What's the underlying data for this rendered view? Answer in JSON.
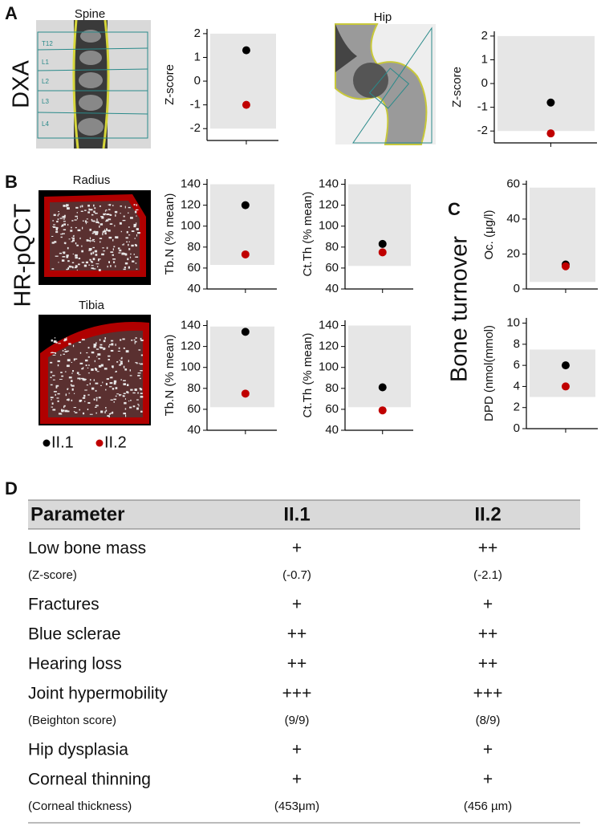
{
  "panel_labels": [
    "A",
    "B",
    "C",
    "D"
  ],
  "row_labels": [
    "DXA",
    "HR-pQCT",
    "Bone turnover"
  ],
  "image_titles": [
    "Spine",
    "Hip",
    "Radius",
    "Tibia"
  ],
  "spine_levels": [
    "T12",
    "L1",
    "L2",
    "L3",
    "L4"
  ],
  "chart_data": [
    {
      "type": "dot",
      "y_label": "Z-score",
      "categories": [
        null
      ],
      "series": [
        {
          "name": "II.1",
          "color": "#000000",
          "values": [
            1.3
          ]
        },
        {
          "name": "II.2",
          "color": "#c00000",
          "values": [
            -1.0
          ]
        }
      ],
      "reference_range": [
        -2,
        2
      ],
      "reference_color": "#e6e6e6",
      "ylim": [
        -2.5,
        2.2
      ],
      "yticks": [
        -2,
        -1,
        0,
        1,
        2
      ]
    },
    {
      "type": "dot",
      "y_label": "Z-score",
      "categories": [
        null
      ],
      "series": [
        {
          "name": "II.1",
          "color": "#000000",
          "values": [
            -0.8
          ]
        },
        {
          "name": "II.2",
          "color": "#c00000",
          "values": [
            -2.1
          ]
        }
      ],
      "reference_range": [
        -2,
        2
      ],
      "reference_color": "#e6e6e6",
      "ylim": [
        -2.5,
        2.2
      ],
      "yticks": [
        -2,
        -1,
        0,
        1,
        2
      ]
    },
    {
      "type": "dot",
      "y_label": "Tb.N (% mean)",
      "categories": [
        null
      ],
      "series": [
        {
          "name": "II.1",
          "color": "#000000",
          "values": [
            120
          ]
        },
        {
          "name": "II.2",
          "color": "#c00000",
          "values": [
            73
          ]
        }
      ],
      "reference_range": [
        63,
        140
      ],
      "reference_color": "#e6e6e6",
      "ylim": [
        40,
        145
      ],
      "yticks": [
        40,
        60,
        80,
        100,
        120,
        140
      ]
    },
    {
      "type": "dot",
      "y_label": "Ct.Th (% mean)",
      "categories": [
        null
      ],
      "series": [
        {
          "name": "II.1",
          "color": "#000000",
          "values": [
            83
          ]
        },
        {
          "name": "II.2",
          "color": "#c00000",
          "values": [
            75
          ]
        }
      ],
      "reference_range": [
        62,
        140
      ],
      "reference_color": "#e6e6e6",
      "ylim": [
        40,
        145
      ],
      "yticks": [
        40,
        60,
        80,
        100,
        120,
        140
      ]
    },
    {
      "type": "dot",
      "y_label": "Tb.N (% mean)",
      "categories": [
        null
      ],
      "series": [
        {
          "name": "II.1",
          "color": "#000000",
          "values": [
            134
          ]
        },
        {
          "name": "II.2",
          "color": "#c00000",
          "values": [
            75
          ]
        }
      ],
      "reference_range": [
        62,
        139
      ],
      "reference_color": "#e6e6e6",
      "ylim": [
        40,
        145
      ],
      "yticks": [
        40,
        60,
        80,
        100,
        120,
        140
      ]
    },
    {
      "type": "dot",
      "y_label": "Ct.Th (% mean)",
      "categories": [
        null
      ],
      "series": [
        {
          "name": "II.1",
          "color": "#000000",
          "values": [
            81
          ]
        },
        {
          "name": "II.2",
          "color": "#c00000",
          "values": [
            59
          ]
        }
      ],
      "reference_range": [
        62,
        140
      ],
      "reference_color": "#e6e6e6",
      "ylim": [
        40,
        145
      ],
      "yticks": [
        40,
        60,
        80,
        100,
        120,
        140
      ]
    },
    {
      "type": "dot",
      "y_label": "Oc. (μg/l)",
      "categories": [
        null
      ],
      "series": [
        {
          "name": "II.1",
          "color": "#000000",
          "values": [
            14
          ]
        },
        {
          "name": "II.2",
          "color": "#c00000",
          "values": [
            13
          ]
        }
      ],
      "reference_range": [
        4,
        58
      ],
      "reference_color": "#e6e6e6",
      "ylim": [
        0,
        62
      ],
      "yticks": [
        0,
        20,
        40,
        60
      ]
    },
    {
      "type": "dot",
      "y_label": "DPD (nmol(mmol)",
      "categories": [
        null
      ],
      "series": [
        {
          "name": "II.1",
          "color": "#000000",
          "values": [
            6
          ]
        },
        {
          "name": "II.2",
          "color": "#c00000",
          "values": [
            4
          ]
        }
      ],
      "reference_range": [
        3,
        7.5
      ],
      "reference_color": "#e6e6e6",
      "ylim": [
        0,
        10.5
      ],
      "yticks": [
        0,
        2,
        4,
        6,
        8,
        10
      ]
    }
  ],
  "table": {
    "header": [
      "Parameter",
      "II.1",
      "II.2"
    ],
    "rows": [
      [
        "Low bone mass",
        "+",
        "++"
      ],
      [
        "(Z-score)",
        "(-0.7)",
        "(-2.1)"
      ],
      [
        "Fractures",
        "+",
        "+"
      ],
      [
        "Blue sclerae",
        "++",
        "++"
      ],
      [
        "Hearing loss",
        "++",
        "++"
      ],
      [
        "Joint hypermobility",
        "+++",
        "+++"
      ],
      [
        "(Beighton score)",
        "(9/9)",
        "(8/9)"
      ],
      [
        "Hip dysplasia",
        "+",
        "+"
      ],
      [
        "Corneal thinning",
        "+",
        "+"
      ],
      [
        "(Corneal thickness)",
        "(453μm)",
        "(456 µm)"
      ]
    ]
  }
}
